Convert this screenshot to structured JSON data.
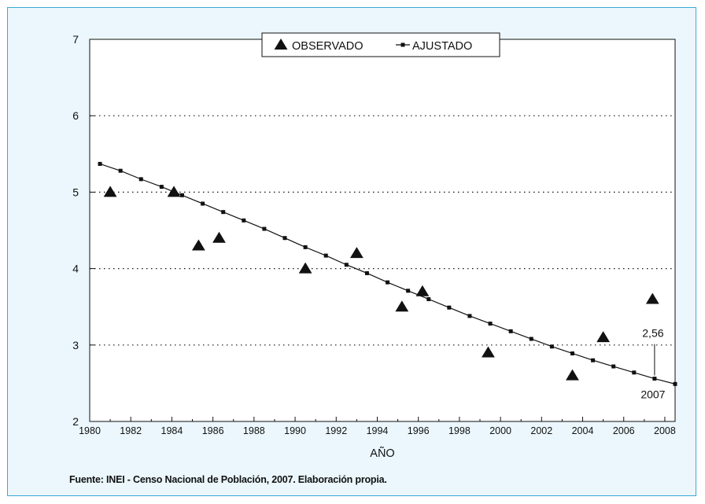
{
  "source_note": "Fuente: INEI - Censo Nacional de Población, 2007. Elaboración propia.",
  "colors": {
    "frame_border": "#3aa9d8",
    "frame_background": "#ebf7fd",
    "plot_background": "#ffffff",
    "marks": "#111111"
  },
  "chart_data": {
    "type": "scatter",
    "xlabel": "AÑO",
    "ylabel": "",
    "xlim": [
      1980,
      2008.5
    ],
    "ylim": [
      2,
      7
    ],
    "xticks": [
      1980,
      1982,
      1984,
      1986,
      1988,
      1990,
      1992,
      1994,
      1996,
      1998,
      2000,
      2002,
      2004,
      2006,
      2008
    ],
    "yticks": [
      2,
      3,
      4,
      5,
      6,
      7
    ],
    "grid": "horizontal dotted lines at 3, 4, 5, 6",
    "legend_position": "top-center",
    "series": [
      {
        "name": "OBSERVADO",
        "marker": "triangle",
        "x": [
          1981.0,
          1984.1,
          1985.3,
          1986.3,
          1990.5,
          1993.0,
          1995.2,
          1996.2,
          1999.4,
          2003.5,
          2005.0,
          2007.4
        ],
        "y": [
          5.0,
          5.0,
          4.3,
          4.4,
          4.0,
          4.2,
          3.5,
          3.7,
          2.9,
          2.6,
          3.1,
          3.6
        ]
      },
      {
        "name": "AJUSTADO",
        "marker": "square-line",
        "x": [
          1980.5,
          1981.5,
          1982.5,
          1983.5,
          1984.5,
          1985.5,
          1986.5,
          1987.5,
          1988.5,
          1989.5,
          1990.5,
          1991.5,
          1992.5,
          1993.5,
          1994.5,
          1995.5,
          1996.5,
          1997.5,
          1998.5,
          1999.5,
          2000.5,
          2001.5,
          2002.5,
          2003.5,
          2004.5,
          2005.5,
          2006.5,
          2007.5,
          2008.5
        ],
        "y": [
          5.37,
          5.28,
          5.17,
          5.07,
          4.96,
          4.85,
          4.74,
          4.63,
          4.52,
          4.4,
          4.28,
          4.17,
          4.05,
          3.94,
          3.82,
          3.71,
          3.6,
          3.49,
          3.38,
          3.28,
          3.18,
          3.08,
          2.98,
          2.89,
          2.8,
          2.72,
          2.64,
          2.56,
          2.49
        ]
      }
    ],
    "annotations": [
      {
        "text": "2,56",
        "x": 2007.5,
        "y": 2.56,
        "position": "above"
      },
      {
        "text": "2007",
        "x": 2007.5,
        "y": 2.56,
        "position": "below"
      }
    ]
  }
}
